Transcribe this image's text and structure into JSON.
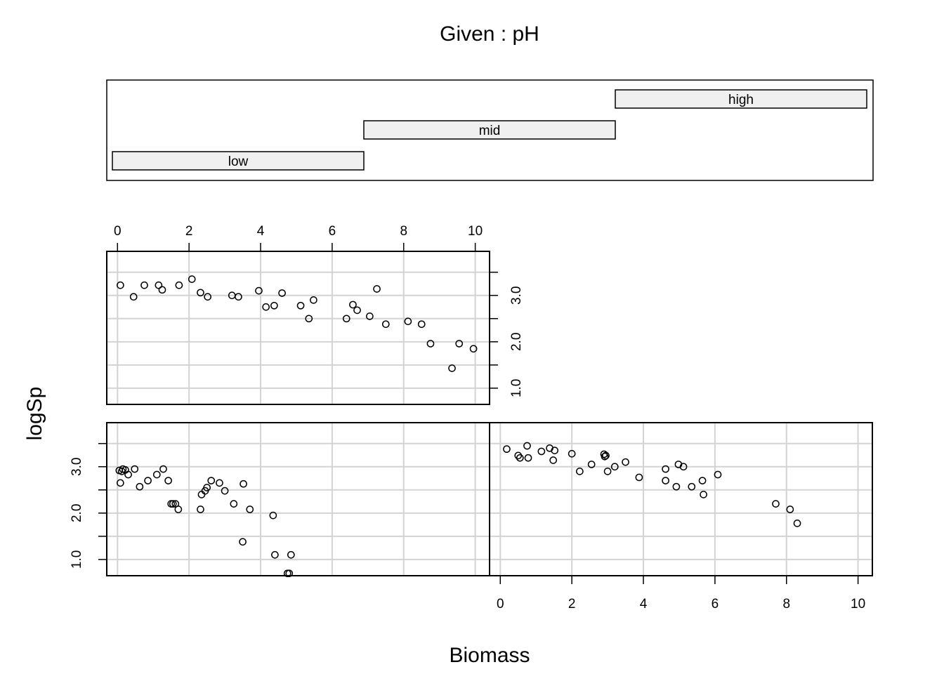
{
  "chart_data": {
    "type": "scatter",
    "title": "Given : pH",
    "xlabel": "Biomass",
    "ylabel": "logSp",
    "xlim": [
      -0.3,
      10.4
    ],
    "ylim": [
      0.65,
      3.95
    ],
    "x_ticks": [
      "0",
      "2",
      "4",
      "6",
      "8",
      "10"
    ],
    "y_ticks": [
      "1.0",
      "2.0",
      "3.0"
    ],
    "grid": true,
    "colors": {
      "grid": "#d3d3d3",
      "bar_fill": "#f0f0f0",
      "axis": "#000000",
      "points": "#000000"
    },
    "given": [
      {
        "label": "low",
        "bar": 0
      },
      {
        "label": "mid",
        "bar": 1
      },
      {
        "label": "high",
        "bar": 2
      }
    ],
    "panels": [
      {
        "level": "low",
        "points": [
          [
            0.05,
            2.92
          ],
          [
            0.08,
            2.65
          ],
          [
            0.12,
            2.9
          ],
          [
            0.15,
            2.95
          ],
          [
            0.22,
            2.93
          ],
          [
            0.3,
            2.83
          ],
          [
            0.48,
            2.95
          ],
          [
            0.62,
            2.57
          ],
          [
            0.85,
            2.7
          ],
          [
            1.1,
            2.83
          ],
          [
            1.28,
            2.95
          ],
          [
            1.42,
            2.7
          ],
          [
            1.5,
            2.2
          ],
          [
            1.55,
            2.2
          ],
          [
            1.62,
            2.2
          ],
          [
            1.7,
            2.08
          ],
          [
            2.32,
            2.08
          ],
          [
            2.35,
            2.4
          ],
          [
            2.45,
            2.48
          ],
          [
            2.5,
            2.55
          ],
          [
            2.62,
            2.7
          ],
          [
            2.85,
            2.65
          ],
          [
            3.0,
            2.48
          ],
          [
            3.25,
            2.2
          ],
          [
            3.5,
            1.38
          ],
          [
            3.52,
            2.63
          ],
          [
            3.7,
            2.08
          ],
          [
            4.35,
            1.95
          ],
          [
            4.4,
            1.1
          ],
          [
            4.75,
            0.7
          ],
          [
            4.8,
            0.7
          ],
          [
            4.85,
            1.1
          ]
        ]
      },
      {
        "level": "mid",
        "points": [
          [
            0.08,
            3.22
          ],
          [
            0.45,
            2.97
          ],
          [
            0.75,
            3.22
          ],
          [
            1.15,
            3.22
          ],
          [
            1.25,
            3.12
          ],
          [
            1.72,
            3.22
          ],
          [
            2.08,
            3.35
          ],
          [
            2.32,
            3.06
          ],
          [
            2.52,
            2.97
          ],
          [
            3.2,
            3.0
          ],
          [
            3.38,
            2.97
          ],
          [
            3.95,
            3.1
          ],
          [
            4.15,
            2.75
          ],
          [
            4.38,
            2.78
          ],
          [
            4.6,
            3.05
          ],
          [
            5.12,
            2.78
          ],
          [
            5.35,
            2.5
          ],
          [
            5.48,
            2.9
          ],
          [
            6.4,
            2.5
          ],
          [
            6.58,
            2.8
          ],
          [
            6.7,
            2.68
          ],
          [
            7.05,
            2.55
          ],
          [
            7.25,
            3.14
          ],
          [
            7.5,
            2.38
          ],
          [
            8.12,
            2.44
          ],
          [
            8.5,
            2.38
          ],
          [
            8.75,
            1.96
          ],
          [
            9.35,
            1.43
          ],
          [
            9.55,
            1.96
          ],
          [
            9.95,
            1.85
          ]
        ]
      },
      {
        "level": "high",
        "points": [
          [
            0.18,
            3.38
          ],
          [
            0.5,
            3.24
          ],
          [
            0.55,
            3.19
          ],
          [
            0.75,
            3.45
          ],
          [
            0.78,
            3.19
          ],
          [
            1.15,
            3.33
          ],
          [
            1.38,
            3.4
          ],
          [
            1.48,
            3.14
          ],
          [
            1.52,
            3.35
          ],
          [
            2.0,
            3.28
          ],
          [
            2.22,
            2.9
          ],
          [
            2.55,
            3.05
          ],
          [
            2.9,
            3.27
          ],
          [
            2.92,
            3.22
          ],
          [
            2.95,
            3.24
          ],
          [
            3.0,
            2.9
          ],
          [
            3.2,
            3.0
          ],
          [
            3.5,
            3.1
          ],
          [
            3.88,
            2.77
          ],
          [
            4.62,
            2.95
          ],
          [
            4.62,
            2.7
          ],
          [
            4.92,
            2.57
          ],
          [
            4.98,
            3.05
          ],
          [
            5.12,
            3.0
          ],
          [
            5.35,
            2.57
          ],
          [
            5.65,
            2.7
          ],
          [
            5.68,
            2.4
          ],
          [
            6.08,
            2.83
          ],
          [
            7.7,
            2.2
          ],
          [
            8.1,
            2.08
          ],
          [
            8.3,
            1.78
          ]
        ]
      }
    ]
  }
}
